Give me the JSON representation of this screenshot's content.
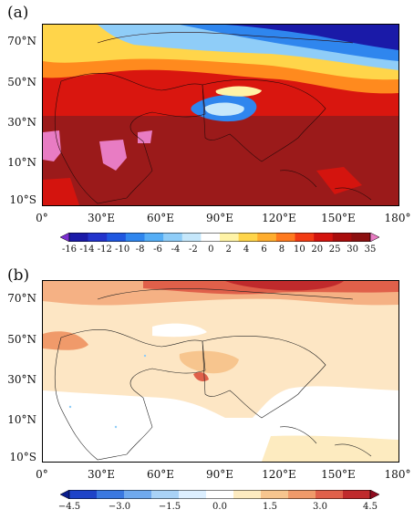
{
  "panels": [
    {
      "label": "(a)",
      "lat_ticks": [
        "70°N",
        "50°N",
        "30°N",
        "10°N",
        "10°S"
      ],
      "lon_ticks": [
        "0°",
        "30°E",
        "60°E",
        "90°E",
        "120°E",
        "150°E",
        "180°"
      ],
      "colorbar": {
        "labels": [
          "-16",
          "-14",
          "-12",
          "-10",
          "-8",
          "-6",
          "-4",
          "-2",
          "0",
          "2",
          "4",
          "6",
          "8",
          "10",
          "20",
          "25",
          "30",
          "35"
        ],
        "colors": [
          "#7b2fd0",
          "#1a1aa8",
          "#2233cc",
          "#1f57e0",
          "#2f86ee",
          "#55aef6",
          "#8fcdf8",
          "#c5e7fb",
          "#ffffff",
          "#fff3a6",
          "#ffd54a",
          "#ffad2e",
          "#ff7a1f",
          "#f23b14",
          "#d4140e",
          "#a90d0c",
          "#8c1010",
          "#e87cc3"
        ]
      }
    },
    {
      "label": "(b)",
      "lat_ticks": [
        "70°N",
        "50°N",
        "30°N",
        "10°N",
        "10°S"
      ],
      "lon_ticks": [
        "0°",
        "30°E",
        "60°E",
        "90°E",
        "120°E",
        "150°E",
        "180°"
      ],
      "colorbar": {
        "labels": [
          "−4.5",
          "−3.0",
          "−1.5",
          "0.0",
          "1.5",
          "3.0",
          "4.5"
        ],
        "colors": [
          "#0a1d8c",
          "#1e43c8",
          "#3a78e0",
          "#6fa9ee",
          "#a9d2f6",
          "#dcefff",
          "#ffffff",
          "#fdebc0",
          "#f7c58e",
          "#f09a6a",
          "#e0604a",
          "#c02a2c",
          "#8e0b1e"
        ]
      }
    }
  ]
}
